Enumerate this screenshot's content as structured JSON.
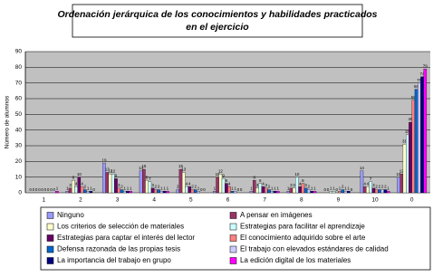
{
  "chart_data": {
    "type": "bar",
    "title": [
      "Ordenación jerárquica de los conocimientos y habilidades practicados",
      "en el ejercicio"
    ],
    "y_label": "Número de alumnos",
    "categories": [
      "1",
      "2",
      "3",
      "4",
      "5",
      "6",
      "7",
      "8",
      "9",
      "10",
      "0"
    ],
    "ylim": [
      0,
      90
    ],
    "yticks": [
      0,
      10,
      20,
      30,
      40,
      50,
      60,
      70,
      80,
      90
    ],
    "grid": true,
    "series": [
      {
        "name": "Ninguno",
        "color": "#9999ff",
        "values": [
          0,
          1,
          19,
          14,
          2,
          1,
          1,
          1,
          0,
          14,
          10
        ]
      },
      {
        "name": "A pensar en imágenes",
        "color": "#993366",
        "values": [
          0,
          3,
          13,
          15,
          15,
          10,
          8,
          3,
          0,
          4,
          12
        ]
      },
      {
        "name": "Los criterios de selección de materiales",
        "color": "#ffffcc",
        "values": [
          0,
          8,
          12,
          8,
          13,
          12,
          3,
          3,
          1,
          4,
          31
        ]
      },
      {
        "name": "Estrategias para facilitar el aprendizaje",
        "color": "#ccffff",
        "values": [
          0,
          4,
          12,
          7,
          4,
          9,
          6,
          10,
          1,
          7,
          37
        ]
      },
      {
        "name": "Estrategias para captar el interés del lector",
        "color": "#660066",
        "values": [
          0,
          10,
          9,
          3,
          4,
          6,
          4,
          4,
          0,
          3,
          45
        ]
      },
      {
        "name": "El conocimiento adquirido sobre el arte",
        "color": "#ff8080",
        "values": [
          0,
          4,
          3,
          2,
          2,
          4,
          3,
          6,
          1,
          2,
          59
        ]
      },
      {
        "name": "Defensa razonada de las propias tesis",
        "color": "#0066cc",
        "values": [
          0,
          2,
          2,
          2,
          2,
          1,
          2,
          3,
          2,
          2,
          66
        ]
      },
      {
        "name": "El trabajo con elevados estándares de calidad",
        "color": "#ccccff",
        "values": [
          0,
          1,
          1,
          1,
          1,
          1,
          1,
          2,
          1,
          2,
          70
        ]
      },
      {
        "name": "La importancia del trabajo en grupo",
        "color": "#000080",
        "values": [
          0,
          1,
          1,
          1,
          0,
          0,
          1,
          1,
          1,
          2,
          74
        ]
      },
      {
        "name": "La edición digital de los materiales",
        "color": "#ff00ff",
        "values": [
          1,
          0,
          1,
          1,
          0,
          0,
          1,
          1,
          0,
          1,
          79
        ]
      }
    ]
  }
}
